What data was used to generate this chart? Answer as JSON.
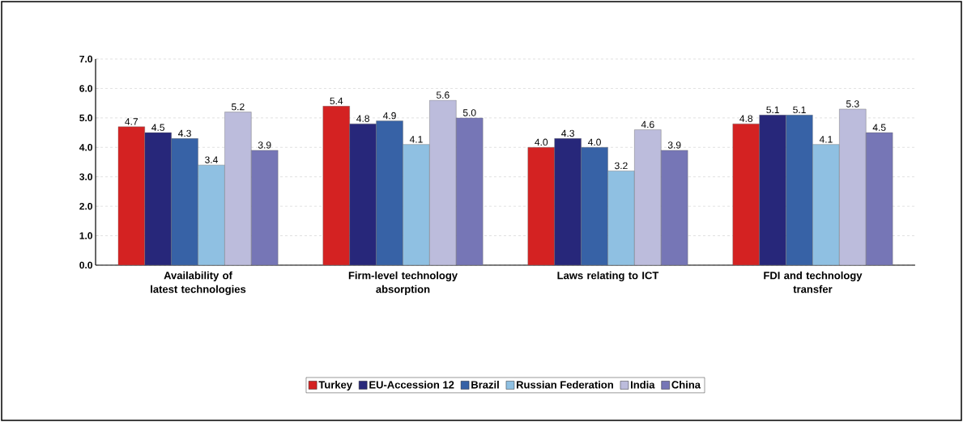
{
  "chart_data": {
    "type": "bar",
    "categories": [
      "Availability of latest technologies",
      "Firm-level technology absorption",
      "Laws relating to ICT",
      "FDI and technology transfer"
    ],
    "series": [
      {
        "name": "Turkey",
        "color": "#d42222",
        "values": [
          4.7,
          5.4,
          4.0,
          4.8
        ],
        "value_labels": [
          "4.7",
          "5.4",
          "4.0",
          "4.8"
        ]
      },
      {
        "name": "EU-Accession 12",
        "color": "#27277a",
        "values": [
          4.5,
          4.8,
          4.3,
          5.1
        ],
        "value_labels": [
          "4.5",
          "4.8",
          "4.3",
          "5.1"
        ]
      },
      {
        "name": "Brazil",
        "color": "#3762a6",
        "values": [
          4.3,
          4.9,
          4.0,
          5.1
        ],
        "value_labels": [
          "4.3",
          "4.9",
          "4.0",
          "5.1"
        ]
      },
      {
        "name": "Russian Federation",
        "color": "#8fc0e2",
        "values": [
          3.4,
          4.1,
          3.2,
          4.1
        ],
        "value_labels": [
          "3.4",
          "4.1",
          "3.2",
          "4.1"
        ]
      },
      {
        "name": "India",
        "color": "#bcbcdc",
        "values": [
          5.2,
          5.6,
          4.6,
          5.3
        ],
        "value_labels": [
          "5.2",
          "5.6",
          "4.6",
          "5.3"
        ]
      },
      {
        "name": "China",
        "color": "#7676b6",
        "values": [
          3.9,
          5.0,
          3.9,
          4.5
        ],
        "value_labels": [
          "3.9",
          "5.0",
          "3.9",
          "4.5"
        ]
      }
    ],
    "ylim": [
      0,
      7
    ],
    "yticks": [
      {
        "value": 0,
        "label": "0.0"
      },
      {
        "value": 1,
        "label": "1.0"
      },
      {
        "value": 2,
        "label": "2.0"
      },
      {
        "value": 3,
        "label": "3.0"
      },
      {
        "value": 4,
        "label": "4.0"
      },
      {
        "value": 5,
        "label": "5.0"
      },
      {
        "value": 6,
        "label": "6.0"
      },
      {
        "value": 7,
        "label": "7.0"
      }
    ],
    "grid": "y",
    "legend": "bottom"
  }
}
